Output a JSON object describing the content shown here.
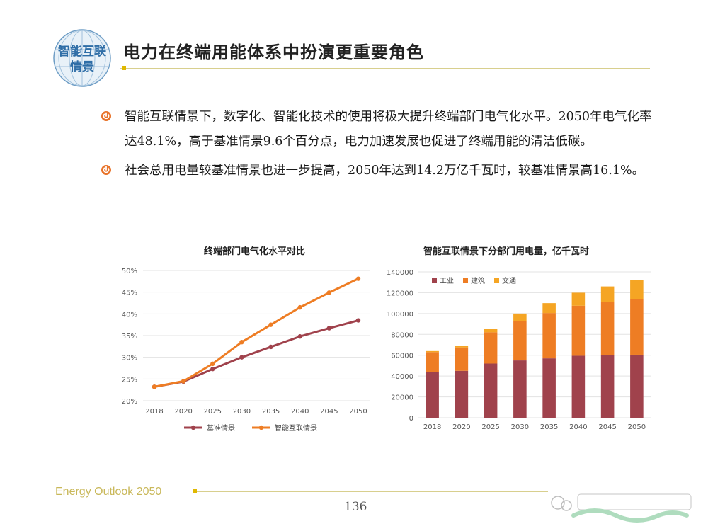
{
  "header": {
    "logo_text_line1": "智能互联",
    "logo_text_line2": "情景",
    "title": "电力在终端用能体系中扮演更重要角色"
  },
  "bullets": [
    "智能互联情景下，数字化、智能化技术的使用将极大提升终端部门电气化水平。2050年电气化率达48.1%，高于基准情景9.6个百分点，电力加速发展也促进了终端用能的清洁低碳。",
    "社会总用电量较基准情景也进一步提高，2050年达到14.2万亿千瓦时，较基准情景高16.1%。"
  ],
  "chart_data": [
    {
      "type": "line",
      "title": "终端部门电气化水平对比",
      "x": [
        "2018",
        "2020",
        "2025",
        "2030",
        "2035",
        "2040",
        "2045",
        "2050"
      ],
      "series": [
        {
          "name": "基准情景",
          "values": [
            23.2,
            24.4,
            27.3,
            30.0,
            32.4,
            34.8,
            36.7,
            38.5
          ],
          "color": "#a0424c"
        },
        {
          "name": "智能互联情景",
          "values": [
            23.2,
            24.5,
            28.5,
            33.5,
            37.5,
            41.5,
            44.9,
            48.1
          ],
          "color": "#ee7d24"
        }
      ],
      "ylim": [
        20,
        50
      ],
      "yticks": [
        "20%",
        "25%",
        "30%",
        "35%",
        "40%",
        "45%",
        "50%"
      ],
      "legend": "bottom"
    },
    {
      "type": "bar",
      "stacked": true,
      "title": "智能互联情景下分部门用电量，亿千瓦时",
      "categories": [
        "2018",
        "2020",
        "2025",
        "2030",
        "2035",
        "2040",
        "2045",
        "2050"
      ],
      "series": [
        {
          "name": "工业",
          "values": [
            43500,
            45000,
            52000,
            55000,
            57000,
            59500,
            60000,
            60500
          ],
          "color": "#a0424c"
        },
        {
          "name": "建筑",
          "values": [
            19500,
            22500,
            30000,
            38000,
            43500,
            48000,
            51000,
            53500
          ],
          "color": "#ee7d24"
        },
        {
          "name": "交通",
          "values": [
            1000,
            1500,
            3000,
            7000,
            9500,
            12500,
            15000,
            18000
          ],
          "color": "#f5a524"
        }
      ],
      "ylim": [
        0,
        140000
      ],
      "yticks": [
        "0",
        "20000",
        "40000",
        "60000",
        "80000",
        "100000",
        "120000",
        "140000"
      ],
      "legend": "top-left"
    }
  ],
  "footer": {
    "brand": "Energy Outlook 2050",
    "page_number": "136"
  }
}
